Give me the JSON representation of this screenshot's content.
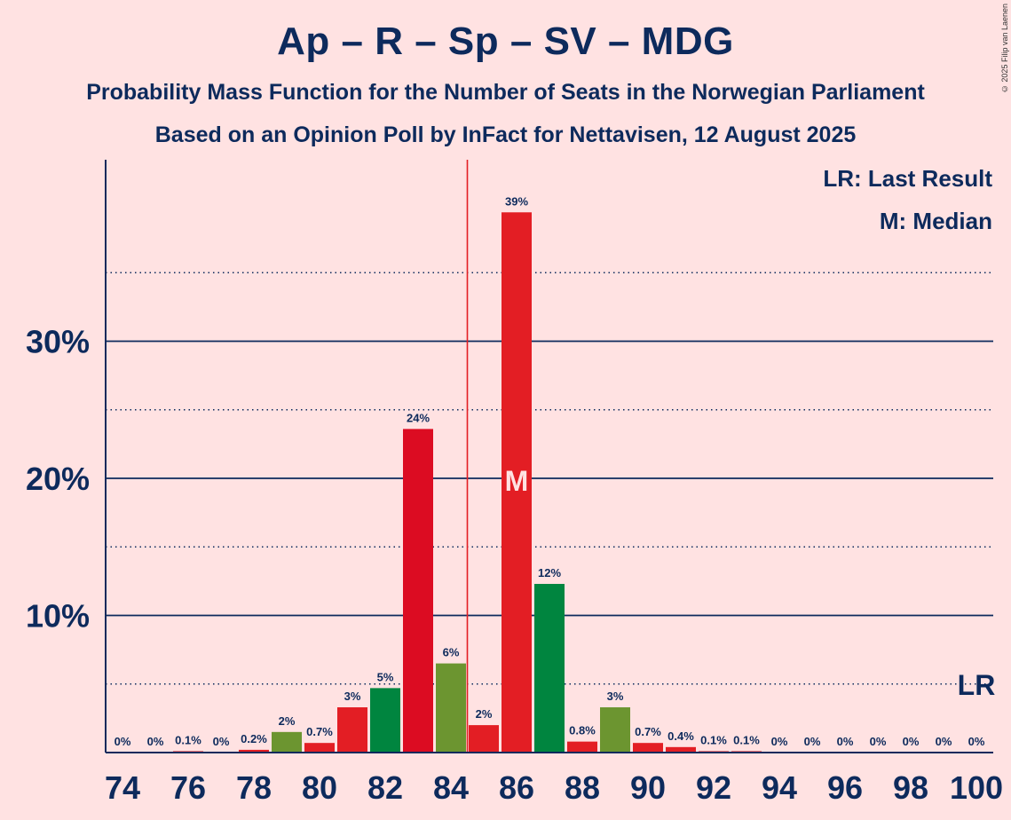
{
  "chart_data": {
    "type": "bar",
    "title": "Ap – R – Sp – SV – MDG",
    "subtitle_1": "Probability Mass Function for the Number of Seats in the Norwegian Parliament",
    "subtitle_2": "Based on an Opinion Poll by InFact for Nettavisen, 12 August 2025",
    "copyright": "© 2025 Filip van Laenen",
    "legend_lr": "LR: Last Result",
    "legend_m": "M: Median",
    "lr_label": "LR",
    "median_label": "M",
    "median_seat": 86,
    "last_result_seat": 100,
    "majority_line_seat": 84.5,
    "xlabel": "",
    "ylabel": "",
    "xlim": [
      74,
      100
    ],
    "ylim": [
      0,
      43
    ],
    "y_ticks": [
      10,
      20,
      30
    ],
    "y_tick_labels": [
      "10%",
      "20%",
      "30%"
    ],
    "y_minor_ticks": [
      5,
      15,
      25,
      35
    ],
    "x_tick_labels": [
      "74",
      "76",
      "78",
      "80",
      "82",
      "84",
      "86",
      "88",
      "90",
      "92",
      "94",
      "96",
      "98",
      "100"
    ],
    "seats": [
      74,
      75,
      76,
      77,
      78,
      79,
      80,
      81,
      82,
      83,
      84,
      85,
      86,
      87,
      88,
      89,
      90,
      91,
      92,
      93,
      94,
      95,
      96,
      97,
      98,
      99,
      100
    ],
    "values": [
      0,
      0,
      0.1,
      0,
      0.2,
      1.5,
      0.7,
      3.3,
      4.7,
      23.6,
      6.5,
      2.0,
      39.4,
      12.3,
      0.8,
      3.3,
      0.7,
      0.4,
      0.1,
      0.1,
      0,
      0,
      0,
      0,
      0,
      0,
      0
    ],
    "value_labels": [
      "0%",
      "0%",
      "0.1%",
      "0%",
      "0.2%",
      "2%",
      "0.7%",
      "3%",
      "5%",
      "24%",
      "6%",
      "2%",
      "39%",
      "12%",
      "0.8%",
      "3%",
      "0.7%",
      "0.4%",
      "0.1%",
      "0.1%",
      "0%",
      "0%",
      "0%",
      "0%",
      "0%",
      "0%",
      "0%"
    ],
    "bar_colors": [
      "#E31E24",
      "#E31E24",
      "#E31E24",
      "#E31E24",
      "#E31E24",
      "#6C9530",
      "#E31E24",
      "#E31E24",
      "#00853F",
      "#DC0C22",
      "#6C9530",
      "#E31E24",
      "#E31E24",
      "#00853F",
      "#E31E24",
      "#6C9530",
      "#E31E24",
      "#E31E24",
      "#E31E24",
      "#E31E24",
      "#E31E24",
      "#E31E24",
      "#E31E24",
      "#E31E24",
      "#E31E24",
      "#E31E24",
      "#E31E24"
    ],
    "text_color": "#0D2A5C",
    "majority_line_color": "#E31E24",
    "background": "#FFE2E2"
  }
}
